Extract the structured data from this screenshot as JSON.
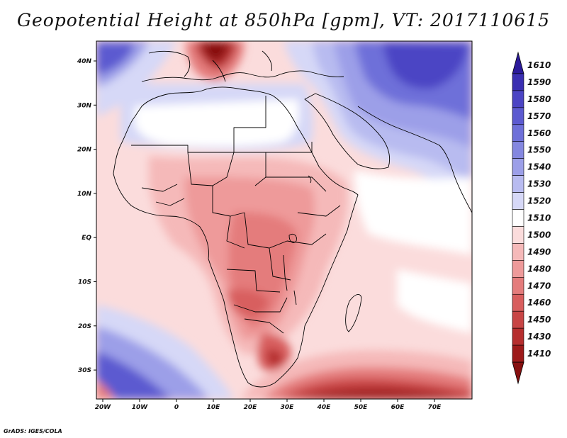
{
  "title": "Geopotential Height at 850hPa [gpm], VT: 2017110615",
  "credit": "GrADS: IGES/COLA",
  "axes": {
    "lon_ticks": [
      "20W",
      "10W",
      "0",
      "10E",
      "20E",
      "30E",
      "40E",
      "50E",
      "60E",
      "70E"
    ],
    "lat_ticks": [
      "40N",
      "30N",
      "20N",
      "10N",
      "EQ",
      "10S",
      "20S",
      "30S"
    ]
  },
  "colorbar": {
    "labels": [
      "1610",
      "1590",
      "1580",
      "1570",
      "1560",
      "1550",
      "1540",
      "1530",
      "1520",
      "1510",
      "1500",
      "1490",
      "1480",
      "1470",
      "1460",
      "1450",
      "1430",
      "1410"
    ],
    "colors": [
      "#2b1a9a",
      "#3a2fb2",
      "#4b44c4",
      "#5c5ad0",
      "#6e70d9",
      "#8487e0",
      "#9c9fe8",
      "#b8bbf0",
      "#d6d8f7",
      "#ffffff",
      "#fbdcdc",
      "#f5b9b9",
      "#ee9a9a",
      "#e47c7c",
      "#d85e5e",
      "#c84545",
      "#b62e2e",
      "#9e1a1a",
      "#861010"
    ]
  },
  "legend_colors": {
    "land_border": "#000000",
    "ocean_mid": "#fbdcdc",
    "african_interior": "#ee9a9a",
    "low_height_core": "#9e1a1a",
    "high_height_core": "#4b44c4"
  }
}
